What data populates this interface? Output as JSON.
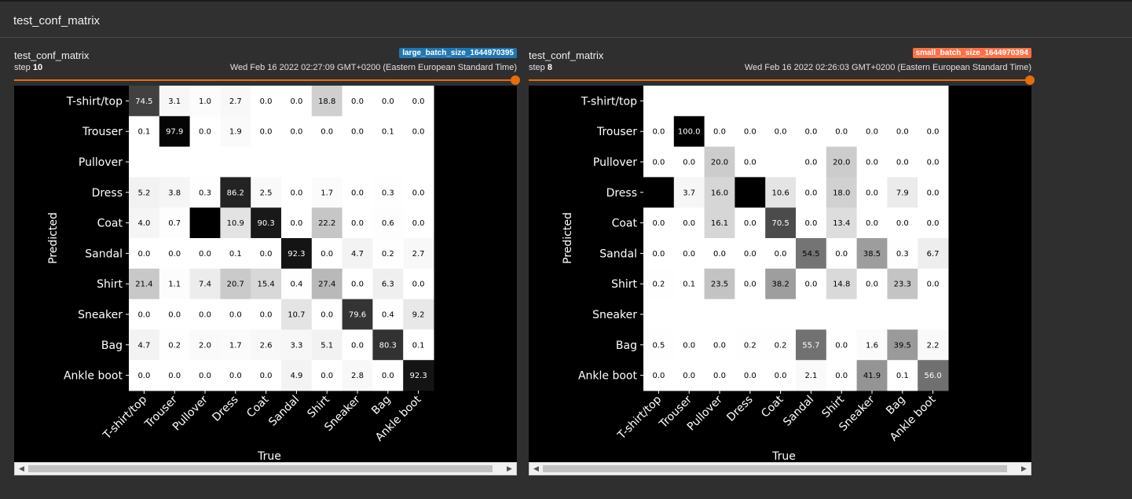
{
  "section": {
    "title": "test_conf_matrix"
  },
  "cards": [
    {
      "title": "test_conf_matrix",
      "run": "large_batch_size_1644970395",
      "run_color": "#1f77b4",
      "step_label": "step",
      "step": "10",
      "timestamp": "Wed Feb 16 2022 02:27:09 GMT+0200 (Eastern European Standard Time)"
    },
    {
      "title": "test_conf_matrix",
      "run": "small_batch_size_1644970394",
      "run_color": "#ff7043",
      "step_label": "step",
      "step": "8",
      "timestamp": "Wed Feb 16 2022 02:26:03 GMT+0200 (Eastern European Standard Time)"
    }
  ],
  "chart_data": [
    {
      "type": "heatmap",
      "title": "",
      "xlabel": "True",
      "ylabel": "Predicted",
      "labels": [
        "T-shirt/top",
        "Trouser",
        "Pullover",
        "Dress",
        "Coat",
        "Sandal",
        "Shirt",
        "Sneaker",
        "Bag",
        "Ankle boot"
      ],
      "values": [
        [
          74.5,
          3.1,
          1.0,
          2.7,
          0.0,
          0.0,
          18.8,
          0.0,
          0.0,
          0.0
        ],
        [
          0.1,
          97.9,
          0.0,
          1.9,
          0.0,
          0.0,
          0.0,
          0.0,
          0.1,
          0.0
        ],
        [
          null,
          null,
          null,
          null,
          null,
          null,
          null,
          null,
          null,
          null
        ],
        [
          5.2,
          3.8,
          0.3,
          86.2,
          2.5,
          0.0,
          1.7,
          0.0,
          0.3,
          0.0
        ],
        [
          4.0,
          0.7,
          null,
          10.9,
          90.3,
          0.0,
          22.2,
          0.0,
          0.6,
          0.0
        ],
        [
          0.0,
          0.0,
          0.0,
          0.1,
          0.0,
          92.3,
          0.0,
          4.7,
          0.2,
          2.7
        ],
        [
          21.4,
          1.1,
          7.4,
          20.7,
          15.4,
          0.4,
          27.4,
          0.0,
          6.3,
          0.0
        ],
        [
          0.0,
          0.0,
          0.0,
          0.0,
          0.0,
          10.7,
          0.0,
          79.6,
          0.4,
          9.2
        ],
        [
          4.7,
          0.2,
          2.0,
          1.7,
          2.6,
          3.3,
          5.1,
          0.0,
          80.3,
          0.1
        ],
        [
          0.0,
          0.0,
          0.0,
          0.0,
          0.0,
          4.9,
          0.0,
          2.8,
          0.0,
          92.3
        ]
      ],
      "black_cells": [
        [
          4,
          2
        ]
      ],
      "colormap": "greys"
    },
    {
      "type": "heatmap",
      "title": "",
      "xlabel": "True",
      "ylabel": "Predicted",
      "labels": [
        "T-shirt/top",
        "Trouser",
        "Pullover",
        "Dress",
        "Coat",
        "Sandal",
        "Shirt",
        "Sneaker",
        "Bag",
        "Ankle boot"
      ],
      "values": [
        [
          null,
          null,
          null,
          null,
          null,
          null,
          null,
          null,
          null,
          null
        ],
        [
          0.0,
          100.0,
          0.0,
          0.0,
          0.0,
          0.0,
          0.0,
          0.0,
          0.0,
          0.0
        ],
        [
          0.0,
          0.0,
          20.0,
          0.0,
          null,
          0.0,
          20.0,
          0.0,
          0.0,
          0.0
        ],
        [
          null,
          3.7,
          16.0,
          null,
          10.6,
          0.0,
          18.0,
          0.0,
          7.9,
          0.0
        ],
        [
          0.0,
          0.0,
          16.1,
          0.0,
          70.5,
          0.0,
          13.4,
          0.0,
          0.0,
          0.0
        ],
        [
          0.0,
          0.0,
          0.0,
          0.0,
          0.0,
          54.5,
          0.0,
          38.5,
          0.3,
          6.7
        ],
        [
          0.2,
          0.1,
          23.5,
          0.0,
          38.2,
          0.0,
          14.8,
          0.0,
          23.3,
          0.0
        ],
        [
          null,
          null,
          null,
          null,
          null,
          null,
          null,
          null,
          null,
          null
        ],
        [
          0.5,
          0.0,
          0.0,
          0.2,
          0.2,
          55.7,
          0.0,
          1.6,
          39.5,
          2.2
        ],
        [
          0.0,
          0.0,
          0.0,
          0.0,
          0.0,
          2.1,
          0.0,
          41.9,
          0.1,
          56.0
        ]
      ],
      "black_cells": [
        [
          3,
          0
        ],
        [
          3,
          3
        ]
      ],
      "colormap": "greys"
    }
  ]
}
